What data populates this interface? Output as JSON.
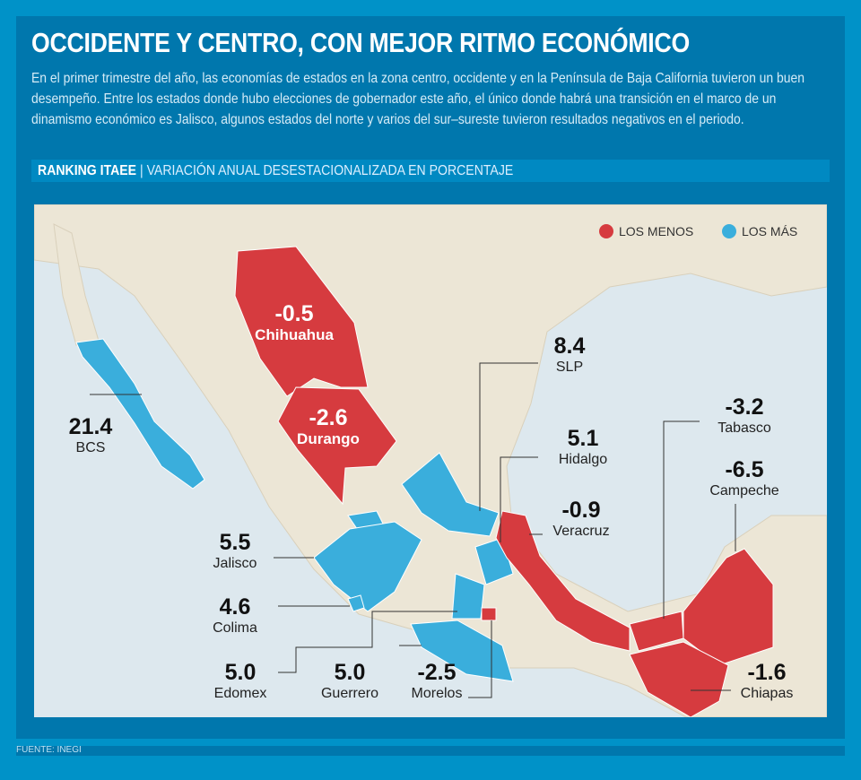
{
  "title": "OCCIDENTE Y CENTRO, CON MEJOR RITMO ECONÓMICO",
  "lede": "En el primer trimestre del año, las economías de estados en la zona centro, occidente y en la Península de Baja California tuvieron un buen desempeño. Entre los estados donde hubo elecciones de gobernador este año, el único donde habrá una transición en el marco de un dinamismo económico es Jalisco, algunos estados del norte y varios del sur–sureste tuvieron resultados negativos en el periodo.",
  "ranking": {
    "label": "RANKING ITAEE",
    "separator": "|",
    "subtitle": "VARIACIÓN ANUAL DESESTACIONALIZADA EN PORCENTAJE"
  },
  "legend": {
    "worst": "LOS MENOS",
    "best": "LOS MÁS",
    "worst_color": "#d63b3f",
    "best_color": "#3aaedc"
  },
  "states": {
    "chihuahua": {
      "value": "-0.5",
      "name": "Chihuahua",
      "group": "worst"
    },
    "durango": {
      "value": "-2.6",
      "name": "Durango",
      "group": "worst"
    },
    "bcs": {
      "value": "21.4",
      "name": "BCS",
      "group": "best"
    },
    "slp": {
      "value": "8.4",
      "name": "SLP",
      "group": "best"
    },
    "hidalgo": {
      "value": "5.1",
      "name": "Hidalgo",
      "group": "best"
    },
    "veracruz": {
      "value": "-0.9",
      "name": "Veracruz",
      "group": "worst"
    },
    "tabasco": {
      "value": "-3.2",
      "name": "Tabasco",
      "group": "worst"
    },
    "campeche": {
      "value": "-6.5",
      "name": "Campeche",
      "group": "worst"
    },
    "jalisco": {
      "value": "5.5",
      "name": "Jalisco",
      "group": "best"
    },
    "colima": {
      "value": "4.6",
      "name": "Colima",
      "group": "best"
    },
    "edomex": {
      "value": "5.0",
      "name": "Edomex",
      "group": "best"
    },
    "guerrero": {
      "value": "5.0",
      "name": "Guerrero",
      "group": "best"
    },
    "morelos": {
      "value": "-2.5",
      "name": "Morelos",
      "group": "worst"
    },
    "chiapas": {
      "value": "-1.6",
      "name": "Chiapas",
      "group": "worst"
    }
  },
  "source": "FUENTE: INEGI"
}
